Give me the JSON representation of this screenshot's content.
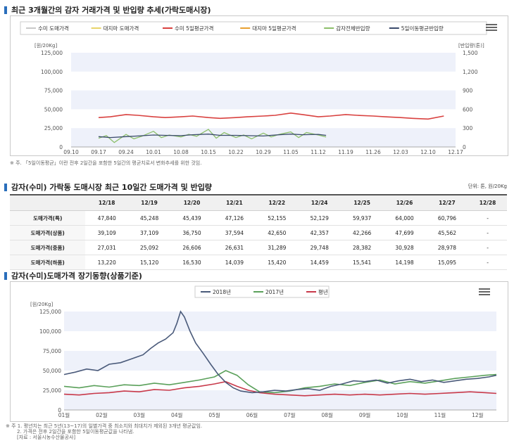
{
  "section1": {
    "title": "최근 3개월간의 감자 거래가격 및 반입량 추세(가락도매시장)",
    "footnote": "※ 주. 「5일이동평균」이란 전후 2일간을 포함한 5일간의 평균치로서 변화추세를 위한 것임."
  },
  "section2": {
    "title": "감자(수미) 가락동 도매시장 최근 10일간 도매가격 및 반입량",
    "unit": "단위: 톤, 원/20Kg"
  },
  "section3": {
    "title": "감자(수미)도매가격 장기동향(상품기준)",
    "footnote_line1": "※ 주 1. 평년치는 최근 5년(13~17)의 일별가격 중 최소치와 최대치가 제외된 3개년 평균값임.",
    "footnote_line2": "2. 가격은 전후 2일간을 포함한 5일이동평균값을 나타냄.",
    "footnote_line3": "[자료 : 서울시농수산물공사]"
  },
  "chart_data": [
    {
      "type": "line",
      "legend_position": "top",
      "legend": [
        "수미 도매가격",
        "대지마 도매가격",
        "수미 5일평균가격",
        "대지마 5일평균가격",
        "감자전체반입량",
        "5일이동평균반입량"
      ],
      "ylabel_left": "[원/20Kg]",
      "ylabel_right": "[반입량(톤)]",
      "ylim": [
        0,
        125000
      ],
      "y2lim": [
        0,
        1500
      ],
      "y_ticks": [
        "0",
        "25,000",
        "50,000",
        "75,000",
        "100,000",
        "125,000"
      ],
      "y2_ticks": [
        "0",
        "300",
        "600",
        "900",
        "1,200",
        "1,500"
      ],
      "x_ticks": [
        "09.10",
        "09.17",
        "09.24",
        "10.01",
        "10.08",
        "10.15",
        "10.22",
        "10.29",
        "11.05",
        "11.12",
        "11.19",
        "11.26",
        "12.03",
        "12.10",
        "12.17"
      ],
      "grid": true,
      "series": [
        {
          "name": "수미 5일평균가격",
          "color": "#d9413f",
          "axis": "left",
          "x": [
            "09.17",
            "09.20",
            "09.24",
            "09.27",
            "10.01",
            "10.04",
            "10.08",
            "10.11",
            "10.15",
            "10.18",
            "10.22",
            "10.25",
            "10.29",
            "11.01",
            "11.05",
            "11.08",
            "11.12",
            "11.15",
            "11.19",
            "11.22",
            "11.26",
            "11.29",
            "12.03",
            "12.06",
            "12.10",
            "12.14"
          ],
          "values": [
            39000,
            40000,
            43000,
            42000,
            40000,
            39000,
            40000,
            41000,
            39000,
            38000,
            39000,
            40000,
            41000,
            42000,
            45000,
            43000,
            40000,
            41000,
            43000,
            42000,
            41000,
            40000,
            39000,
            38000,
            37000,
            41000
          ]
        },
        {
          "name": "감자전체반입량",
          "color": "#8cbf6a",
          "axis": "right",
          "x": [
            "09.17",
            "09.19",
            "09.21",
            "09.24",
            "09.26",
            "09.28",
            "10.01",
            "10.03",
            "10.05",
            "10.08",
            "10.10",
            "10.12",
            "10.15",
            "10.17",
            "10.19",
            "10.22",
            "10.24",
            "10.26",
            "10.29",
            "10.31",
            "11.02",
            "11.05",
            "11.07",
            "11.09",
            "11.12",
            "11.14"
          ],
          "values": [
            140,
            180,
            70,
            200,
            130,
            170,
            250,
            150,
            190,
            160,
            200,
            170,
            280,
            140,
            230,
            150,
            190,
            130,
            220,
            160,
            200,
            240,
            150,
            230,
            190,
            160
          ]
        },
        {
          "name": "5일이동평균반입량",
          "color": "#3a4a6b",
          "axis": "right",
          "x": [
            "09.17",
            "09.20",
            "09.24",
            "09.27",
            "10.01",
            "10.04",
            "10.08",
            "10.11",
            "10.15",
            "10.18",
            "10.22",
            "10.25",
            "10.29",
            "11.01",
            "11.05",
            "11.08",
            "11.12",
            "11.14"
          ],
          "values": [
            165,
            150,
            165,
            175,
            190,
            185,
            180,
            195,
            205,
            185,
            185,
            180,
            175,
            190,
            205,
            195,
            200,
            185
          ]
        }
      ]
    },
    {
      "type": "table",
      "columns": [
        "",
        "12/18",
        "12/19",
        "12/20",
        "12/21",
        "12/22",
        "12/24",
        "12/25",
        "12/26",
        "12/27",
        "12/28"
      ],
      "rows": [
        [
          "도매가격(특)",
          "47,840",
          "45,248",
          "45,439",
          "47,126",
          "52,155",
          "52,129",
          "59,937",
          "64,000",
          "60,796",
          "-"
        ],
        [
          "도매가격(상품)",
          "39,109",
          "37,109",
          "36,750",
          "37,594",
          "42,650",
          "42,357",
          "42,266",
          "47,699",
          "45,562",
          "-"
        ],
        [
          "도매가격(중품)",
          "27,031",
          "25,092",
          "26,606",
          "26,631",
          "31,289",
          "29,748",
          "28,382",
          "30,928",
          "28,978",
          "-"
        ],
        [
          "도매가격(하품)",
          "13,220",
          "15,120",
          "16,530",
          "14,039",
          "15,420",
          "14,459",
          "15,541",
          "14,198",
          "15,095",
          "-"
        ]
      ]
    },
    {
      "type": "line",
      "legend_position": "top",
      "ylabel": "[원/20Kg]",
      "ylim": [
        0,
        125000
      ],
      "y_ticks": [
        "0",
        "25,000",
        "50,000",
        "75,000",
        "100,000",
        "125,000"
      ],
      "x_ticks": [
        "01월",
        "02월",
        "03월",
        "04월",
        "05월",
        "06월",
        "07월",
        "08월",
        "09월",
        "10월",
        "11월",
        "12월"
      ],
      "grid": true,
      "series": [
        {
          "name": "2018년",
          "color": "#4a5a7a",
          "x": [
            1.0,
            1.3,
            1.6,
            1.9,
            2.2,
            2.5,
            2.8,
            3.1,
            3.3,
            3.5,
            3.7,
            3.9,
            4.0,
            4.1,
            4.2,
            4.35,
            4.5,
            4.7,
            4.9,
            5.1,
            5.3,
            5.5,
            5.7,
            6.0,
            6.3,
            6.6,
            6.9,
            7.2,
            7.5,
            7.8,
            8.1,
            8.4,
            8.7,
            9.0,
            9.3,
            9.6,
            9.9,
            10.2,
            10.5,
            10.8,
            11.1,
            11.4,
            11.7,
            12.0,
            12.3,
            12.5
          ],
          "values": [
            45000,
            48000,
            52000,
            50000,
            58000,
            60000,
            65000,
            70000,
            78000,
            85000,
            90000,
            98000,
            110000,
            125000,
            118000,
            100000,
            85000,
            72000,
            58000,
            45000,
            35000,
            28000,
            24000,
            22000,
            23000,
            25000,
            24000,
            26000,
            27000,
            25000,
            30000,
            33000,
            37000,
            36000,
            38000,
            34000,
            37000,
            39000,
            36000,
            38000,
            35000,
            37000,
            39000,
            40000,
            42000,
            44000
          ]
        },
        {
          "name": "2017년",
          "color": "#5aa05a",
          "x": [
            1.0,
            1.4,
            1.8,
            2.2,
            2.6,
            3.0,
            3.4,
            3.8,
            4.2,
            4.6,
            5.0,
            5.3,
            5.6,
            5.9,
            6.2,
            6.6,
            7.0,
            7.4,
            7.8,
            8.2,
            8.6,
            9.0,
            9.4,
            9.8,
            10.2,
            10.6,
            11.0,
            11.4,
            11.8,
            12.2,
            12.5
          ],
          "values": [
            30000,
            28000,
            31000,
            29000,
            32000,
            31000,
            34000,
            32000,
            35000,
            38000,
            42000,
            50000,
            44000,
            32000,
            23000,
            22000,
            24000,
            28000,
            30000,
            33000,
            31000,
            35000,
            38000,
            33000,
            36000,
            34000,
            37000,
            40000,
            42000,
            44000,
            45000
          ]
        },
        {
          "name": "평년",
          "color": "#c8394a",
          "x": [
            1.0,
            1.4,
            1.8,
            2.2,
            2.6,
            3.0,
            3.4,
            3.8,
            4.2,
            4.6,
            5.0,
            5.3,
            5.6,
            5.9,
            6.2,
            6.6,
            7.0,
            7.4,
            7.8,
            8.2,
            8.6,
            9.0,
            9.4,
            9.8,
            10.2,
            10.6,
            11.0,
            11.4,
            11.8,
            12.2,
            12.5
          ],
          "values": [
            20000,
            19000,
            21000,
            22000,
            24000,
            23000,
            26000,
            25000,
            28000,
            30000,
            33000,
            36000,
            30000,
            25000,
            22000,
            20000,
            19000,
            18000,
            19000,
            20000,
            19000,
            20000,
            19000,
            20000,
            21000,
            20000,
            21000,
            22000,
            23000,
            22000,
            21000
          ]
        }
      ]
    }
  ]
}
